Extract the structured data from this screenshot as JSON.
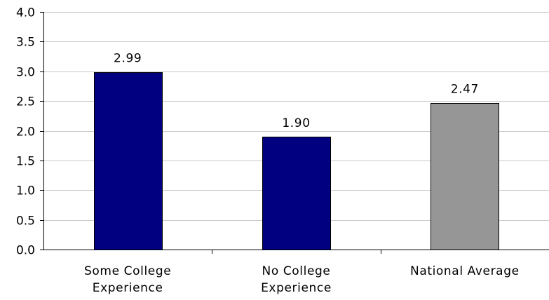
{
  "chart_data": {
    "type": "bar",
    "categories": [
      [
        "Some College",
        "Experience"
      ],
      [
        "No College",
        "Experience"
      ],
      [
        "National Average"
      ]
    ],
    "values": [
      2.99,
      1.9,
      2.47
    ],
    "data_labels": [
      "2.99",
      "1.90",
      "2.47"
    ],
    "bar_colors": [
      "#000080",
      "#000080",
      "#969696"
    ],
    "ylim": [
      0,
      4.0
    ],
    "yticks": [
      0.0,
      0.5,
      1.0,
      1.5,
      2.0,
      2.5,
      3.0,
      3.5,
      4.0
    ],
    "ytick_labels": [
      "0.0",
      "0.5",
      "1.0",
      "1.5",
      "2.0",
      "2.5",
      "3.0",
      "3.5",
      "4.0"
    ],
    "grid": true,
    "legend": "none"
  }
}
